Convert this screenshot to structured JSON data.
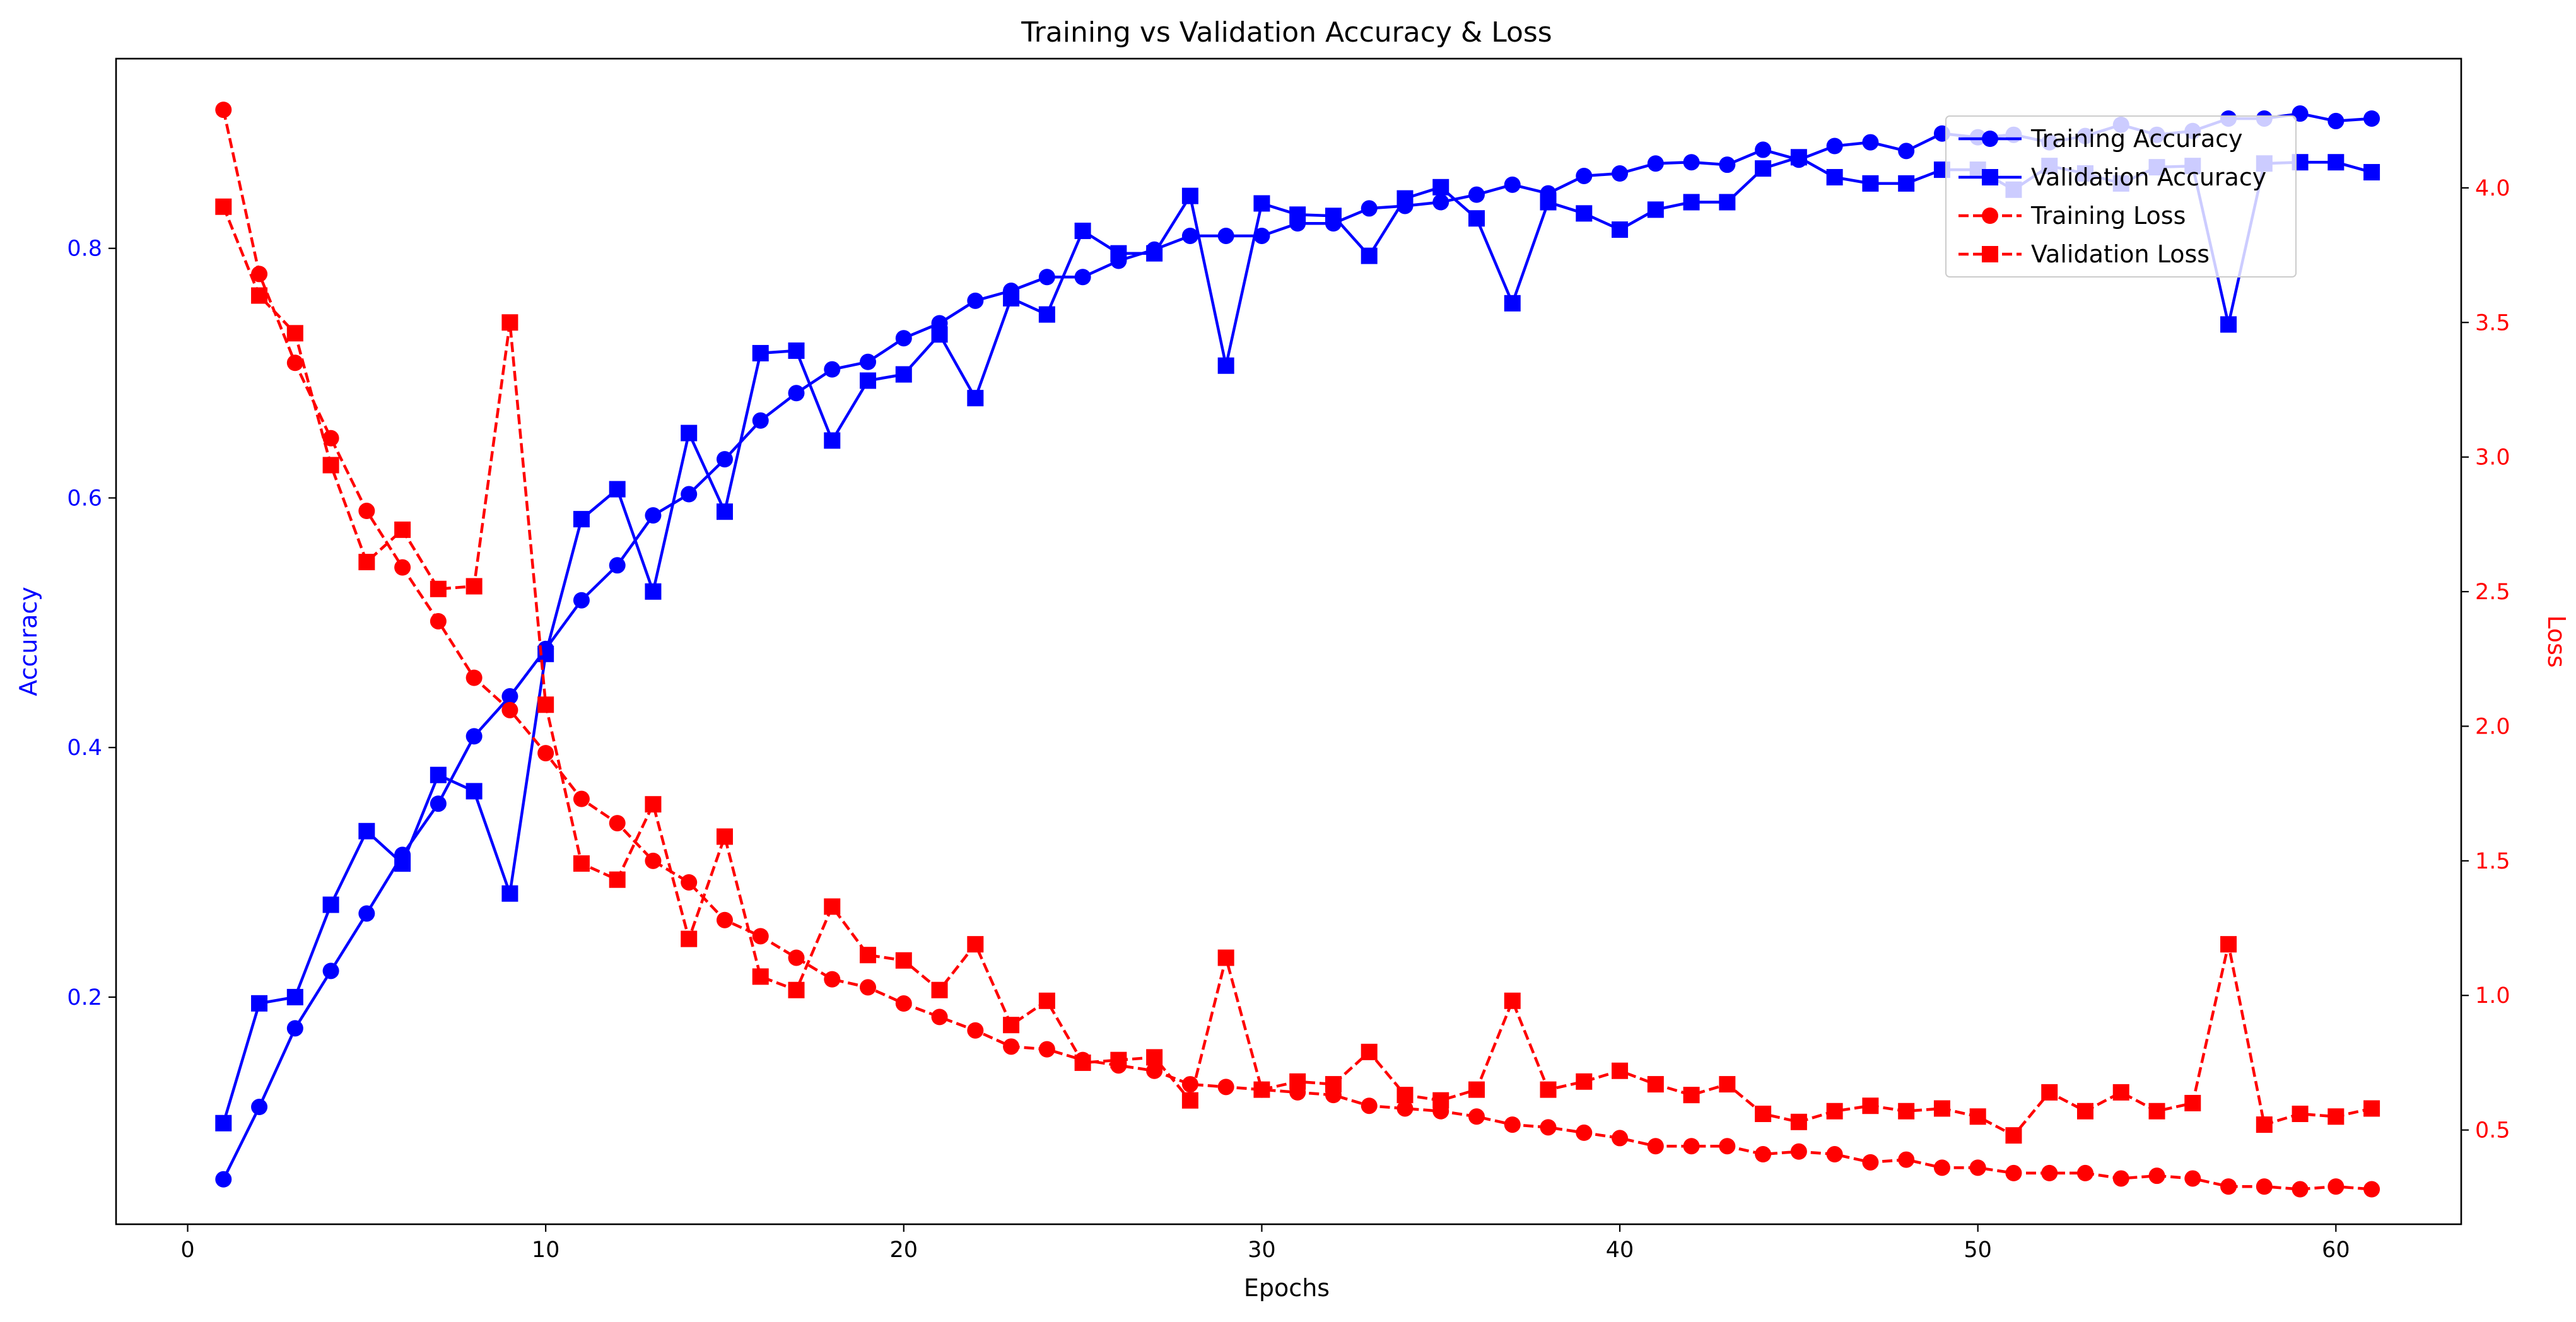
{
  "chart_data": {
    "type": "line",
    "title": "Training vs Validation Accuracy & Loss",
    "xlabel": "Epochs",
    "ylabel_left": "Accuracy",
    "ylabel_right": "Loss",
    "xlim": [
      -2,
      63.5
    ],
    "ylim_left": [
      0.018,
      0.952
    ],
    "ylim_right": [
      0.15,
      4.48
    ],
    "xticks": [
      0,
      10,
      20,
      30,
      40,
      50,
      60
    ],
    "yticks_left": [
      0.2,
      0.4,
      0.6,
      0.8
    ],
    "yticks_right": [
      0.5,
      1.0,
      1.5,
      2.0,
      2.5,
      3.0,
      3.5,
      4.0
    ],
    "grid": false,
    "legend_position": "top-right",
    "colors": {
      "accuracy": "#0000ff",
      "loss": "#ff0000",
      "left_axis_text": "#0000ff",
      "right_axis_text": "#ff0000"
    },
    "x": [
      1,
      2,
      3,
      4,
      5,
      6,
      7,
      8,
      9,
      10,
      11,
      12,
      13,
      14,
      15,
      16,
      17,
      18,
      19,
      20,
      21,
      22,
      23,
      24,
      25,
      26,
      27,
      28,
      29,
      30,
      31,
      32,
      33,
      34,
      35,
      36,
      37,
      38,
      39,
      40,
      41,
      42,
      43,
      44,
      45,
      46,
      47,
      48,
      49,
      50,
      51,
      52,
      53,
      54,
      55,
      56,
      57,
      58,
      59,
      60,
      61
    ],
    "series": [
      {
        "name": "Training Accuracy",
        "axis": "left",
        "color": "#0000ff",
        "linestyle": "solid",
        "marker": "circle",
        "values": [
          0.054,
          0.112,
          0.175,
          0.221,
          0.267,
          0.314,
          0.355,
          0.409,
          0.441,
          0.479,
          0.518,
          0.546,
          0.586,
          0.603,
          0.631,
          0.662,
          0.684,
          0.703,
          0.709,
          0.728,
          0.74,
          0.758,
          0.766,
          0.777,
          0.777,
          0.79,
          0.799,
          0.81,
          0.81,
          0.81,
          0.82,
          0.82,
          0.832,
          0.834,
          0.837,
          0.843,
          0.851,
          0.844,
          0.858,
          0.86,
          0.868,
          0.869,
          0.867,
          0.879,
          0.871,
          0.882,
          0.885,
          0.878,
          0.892,
          0.889,
          0.891,
          0.885,
          0.89,
          0.899,
          0.891,
          0.894,
          0.904,
          0.904,
          0.908,
          0.902,
          0.904
        ]
      },
      {
        "name": "Validation Accuracy",
        "axis": "left",
        "color": "#0000ff",
        "linestyle": "solid",
        "marker": "square",
        "values": [
          0.099,
          0.195,
          0.2,
          0.274,
          0.333,
          0.307,
          0.378,
          0.365,
          0.283,
          0.475,
          0.583,
          0.607,
          0.525,
          0.652,
          0.589,
          0.716,
          0.718,
          0.646,
          0.694,
          0.699,
          0.731,
          0.68,
          0.76,
          0.747,
          0.814,
          0.796,
          0.796,
          0.842,
          0.706,
          0.836,
          0.827,
          0.826,
          0.794,
          0.84,
          0.849,
          0.824,
          0.756,
          0.837,
          0.828,
          0.815,
          0.831,
          0.837,
          0.837,
          0.864,
          0.873,
          0.857,
          0.852,
          0.852,
          0.863,
          0.863,
          0.847,
          0.866,
          0.86,
          0.852,
          0.865,
          0.866,
          0.739,
          0.868,
          0.869,
          0.869,
          0.861
        ]
      },
      {
        "name": "Training Loss",
        "axis": "right",
        "color": "#ff0000",
        "linestyle": "dashed",
        "marker": "circle",
        "values": [
          4.29,
          3.68,
          3.35,
          3.07,
          2.8,
          2.59,
          2.39,
          2.18,
          2.06,
          1.9,
          1.73,
          1.64,
          1.5,
          1.42,
          1.28,
          1.22,
          1.14,
          1.06,
          1.03,
          0.97,
          0.92,
          0.87,
          0.81,
          0.8,
          0.76,
          0.74,
          0.72,
          0.67,
          0.66,
          0.65,
          0.64,
          0.63,
          0.59,
          0.58,
          0.57,
          0.55,
          0.52,
          0.51,
          0.49,
          0.47,
          0.44,
          0.44,
          0.44,
          0.41,
          0.42,
          0.41,
          0.38,
          0.39,
          0.36,
          0.36,
          0.34,
          0.34,
          0.34,
          0.32,
          0.33,
          0.32,
          0.29,
          0.29,
          0.28,
          0.29,
          0.28
        ]
      },
      {
        "name": "Validation Loss",
        "axis": "right",
        "color": "#ff0000",
        "linestyle": "dashed",
        "marker": "square",
        "values": [
          3.93,
          3.6,
          3.46,
          2.97,
          2.61,
          2.73,
          2.51,
          2.52,
          3.5,
          2.08,
          1.49,
          1.43,
          1.71,
          1.21,
          1.59,
          1.07,
          1.02,
          1.33,
          1.15,
          1.13,
          1.02,
          1.19,
          0.89,
          0.98,
          0.75,
          0.76,
          0.77,
          0.61,
          1.14,
          0.65,
          0.68,
          0.67,
          0.79,
          0.63,
          0.61,
          0.65,
          0.98,
          0.65,
          0.68,
          0.72,
          0.67,
          0.63,
          0.67,
          0.56,
          0.53,
          0.57,
          0.59,
          0.57,
          0.58,
          0.55,
          0.48,
          0.64,
          0.57,
          0.64,
          0.57,
          0.6,
          1.19,
          0.52,
          0.56,
          0.55,
          0.58
        ]
      }
    ]
  }
}
